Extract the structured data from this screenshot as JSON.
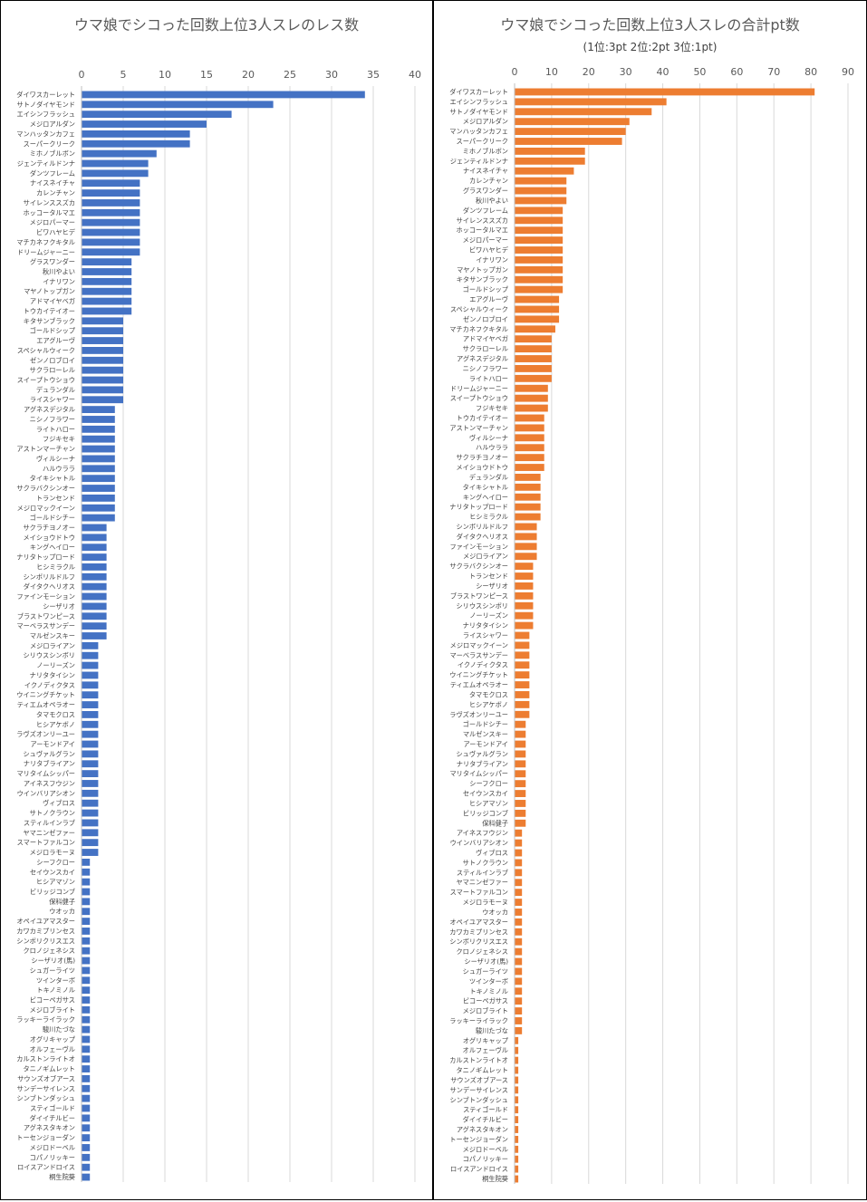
{
  "chart_data": [
    {
      "type": "bar",
      "orientation": "horizontal",
      "title": "ウマ娘でシコった回数上位3人スレのレス数",
      "xlim": [
        0,
        40
      ],
      "x_ticks": [
        "0",
        "5",
        "10",
        "15",
        "20",
        "25",
        "30",
        "35",
        "40"
      ],
      "grid": true,
      "legend": "none",
      "bar_color": "#4472c4",
      "categories": [
        "ダイワスカーレット",
        "サトノダイヤモンド",
        "エイシンフラッシュ",
        "メジロアルダン",
        "マンハッタンカフェ",
        "スーパークリーク",
        "ミホノブルボン",
        "ジェンティルドンナ",
        "ダンツフレーム",
        "ナイスネイチャ",
        "カレンチャン",
        "サイレンススズカ",
        "ホッコータルマエ",
        "メジロパーマー",
        "ビワハヤヒデ",
        "マチカネフクキタル",
        "ドリームジャーニー",
        "グラスワンダー",
        "秋川やよい",
        "イナリワン",
        "マヤノトップガン",
        "アドマイヤベガ",
        "トウカイテイオー",
        "キタサンブラック",
        "ゴールドシップ",
        "エアグルーヴ",
        "スペシャルウィーク",
        "ゼンノロブロイ",
        "サクラローレル",
        "スイープトウショウ",
        "デュランダル",
        "ライスシャワー",
        "アグネスデジタル",
        "ニシノフラワー",
        "ライトハロー",
        "フジキセキ",
        "アストンマーチャン",
        "ヴィルシーナ",
        "ハルウララ",
        "タイキシャトル",
        "サクラバクシンオー",
        "トランセンド",
        "メジロマックイーン",
        "ゴールドシチー",
        "サクラチヨノオー",
        "メイショウドトウ",
        "キングヘイロー",
        "ナリタトップロード",
        "ヒシミラクル",
        "シンボリルドルフ",
        "ダイタクヘリオス",
        "ファインモーション",
        "シーザリオ",
        "ブラストワンピース",
        "マーベラスサンデー",
        "マルゼンスキー",
        "メジロライアン",
        "シリウスシンボリ",
        "ノーリーズン",
        "ナリタタイシン",
        "イクノディクタス",
        "ウイニングチケット",
        "ティエムオペラオー",
        "タマモクロス",
        "ヒシアケボノ",
        "ラヴズオンリーユー",
        "アーモンドアイ",
        "シュヴァルグラン",
        "ナリタブライアン",
        "マリタイムシッパー",
        "アイネスフウジン",
        "ウインバリアシオン",
        "ヴィブロス",
        "サトノクラウン",
        "スティルインラブ",
        "ヤマニンゼファー",
        "スマートファルコン",
        "メジロラモーヌ",
        "シーフクロー",
        "セイウンスカイ",
        "ヒシアマゾン",
        "ビリッジコンブ",
        "保科健子",
        "ウオッカ",
        "オペイユアマスター",
        "カワカミプリンセス",
        "シンボリクリスエス",
        "クロノジェネシス",
        "シーザリオ(馬)",
        "シュガーライツ",
        "ツインターボ",
        "トキノミノル",
        "ビコーペガサス",
        "メジロブライト",
        "ラッキーライラック",
        "駿川たづな",
        "オグリキャップ",
        "オルフェーヴル",
        "カルストンライトオ",
        "タニノギムレット",
        "サウンズオブアース",
        "サンデーサイレンス",
        "シンブトンダッシュ",
        "スティゴールド",
        "ダイイチルビー",
        "アグネスタキオン",
        "トーセンジョーダン",
        "メジロドーベル",
        "コパノリッキー",
        "ロイスアンドロイス",
        "桐生院葵"
      ],
      "values": [
        34,
        23,
        18,
        15,
        13,
        13,
        9,
        8,
        8,
        7,
        7,
        7,
        7,
        7,
        7,
        7,
        7,
        6,
        6,
        6,
        6,
        6,
        6,
        5,
        5,
        5,
        5,
        5,
        5,
        5,
        5,
        5,
        4,
        4,
        4,
        4,
        4,
        4,
        4,
        4,
        4,
        4,
        4,
        4,
        3,
        3,
        3,
        3,
        3,
        3,
        3,
        3,
        3,
        3,
        3,
        3,
        2,
        2,
        2,
        2,
        2,
        2,
        2,
        2,
        2,
        2,
        2,
        2,
        2,
        2,
        2,
        2,
        2,
        2,
        2,
        2,
        2,
        2,
        1,
        1,
        1,
        1,
        1,
        1,
        1,
        1,
        1,
        1,
        1,
        1,
        1,
        1,
        1,
        1,
        1,
        1,
        1,
        1,
        1,
        1,
        1,
        1,
        1,
        1,
        1,
        1,
        1,
        1,
        1,
        1,
        1
      ]
    },
    {
      "type": "bar",
      "orientation": "horizontal",
      "title": "ウマ娘でシコった回数上位3人スレの合計pt数",
      "subtitle": "(1位:3pt 2位:2pt 3位:1pt)",
      "xlim": [
        0,
        90
      ],
      "x_ticks": [
        "0",
        "10",
        "20",
        "30",
        "40",
        "50",
        "60",
        "70",
        "80",
        "90"
      ],
      "grid": true,
      "legend": "none",
      "bar_color": "#ed7d31",
      "categories": [
        "ダイワスカーレット",
        "エイシンフラッシュ",
        "サトノダイヤモンド",
        "メジロアルダン",
        "マンハッタンカフェ",
        "スーパークリーク",
        "ミホノブルボン",
        "ジェンティルドンナ",
        "ナイスネイチャ",
        "カレンチャン",
        "グラスワンダー",
        "秋川やよい",
        "ダンツフレーム",
        "サイレンススズカ",
        "ホッコータルマエ",
        "メジロパーマー",
        "ビワハヤヒデ",
        "イナリワン",
        "マヤノトップガン",
        "キタサンブラック",
        "ゴールドシップ",
        "エアグルーヴ",
        "スペシャルウィーク",
        "ゼンノロブロイ",
        "マチカネフクキタル",
        "アドマイヤベガ",
        "サクラローレル",
        "アグネスデジタル",
        "ニシノフラワー",
        "ライトハロー",
        "ドリームジャーニー",
        "スイープトウショウ",
        "フジキセキ",
        "トウカイテイオー",
        "アストンマーチャン",
        "ヴィルシーナ",
        "ハルウララ",
        "サクラチヨノオー",
        "メイショウドトウ",
        "デュランダル",
        "タイキシャトル",
        "キングヘイロー",
        "ナリタトップロード",
        "ヒシミラクル",
        "シンボリルドルフ",
        "ダイタクヘリオス",
        "ファインモーション",
        "メジロライアン",
        "サクラバクシンオー",
        "トランセンド",
        "シーザリオ",
        "ブラストワンピース",
        "シリウスシンボリ",
        "ノーリーズン",
        "ナリタタイシン",
        "ライスシャワー",
        "メジロマックイーン",
        "マーベラスサンデー",
        "イクノディクタス",
        "ウイニングチケット",
        "ティエムオペラオー",
        "タマモクロス",
        "ヒシアケボノ",
        "ラヴズオンリーユー",
        "ゴールドシチー",
        "マルゼンスキー",
        "アーモンドアイ",
        "シュヴァルグラン",
        "ナリタブライアン",
        "マリタイムシッパー",
        "シーフクロー",
        "セイウンスカイ",
        "ヒシアマゾン",
        "ビリッジコンブ",
        "保科健子",
        "アイネスフウジン",
        "ウインバリアシオン",
        "ヴィブロス",
        "サトノクラウン",
        "スティルインラブ",
        "ヤマニンゼファー",
        "スマートファルコン",
        "メジロラモーヌ",
        "ウオッカ",
        "オペイユアマスター",
        "カワカミプリンセス",
        "シンボリクリスエス",
        "クロノジェネシス",
        "シーザリオ(馬)",
        "シュガーライツ",
        "ツインターボ",
        "トキノミノル",
        "ビコーペガサス",
        "メジロブライト",
        "ラッキーライラック",
        "駿川たづな",
        "オグリキャップ",
        "オルフェーヴル",
        "カルストンライトオ",
        "タニノギムレット",
        "サウンズオブアース",
        "サンデーサイレンス",
        "シンブトンダッシュ",
        "スティゴールド",
        "ダイイチルビー",
        "アグネスタキオン",
        "トーセンジョーダン",
        "メジロドーベル",
        "コパノリッキー",
        "ロイスアンドロイス",
        "桐生院葵"
      ],
      "values": [
        81,
        41,
        37,
        31,
        30,
        29,
        19,
        19,
        16,
        14,
        14,
        14,
        13,
        13,
        13,
        13,
        13,
        13,
        13,
        13,
        13,
        12,
        12,
        12,
        11,
        10,
        10,
        10,
        10,
        10,
        9,
        9,
        9,
        8,
        8,
        8,
        8,
        8,
        8,
        7,
        7,
        7,
        7,
        7,
        6,
        6,
        6,
        6,
        5,
        5,
        5,
        5,
        5,
        5,
        5,
        4,
        4,
        4,
        4,
        4,
        4,
        4,
        4,
        4,
        3,
        3,
        3,
        3,
        3,
        3,
        3,
        3,
        3,
        3,
        3,
        2,
        2,
        2,
        2,
        2,
        2,
        2,
        2,
        2,
        2,
        2,
        2,
        2,
        2,
        2,
        2,
        2,
        2,
        2,
        2,
        2,
        1,
        1,
        1,
        1,
        1,
        1,
        1,
        1,
        1,
        1,
        1,
        1,
        1,
        1,
        1
      ]
    }
  ]
}
